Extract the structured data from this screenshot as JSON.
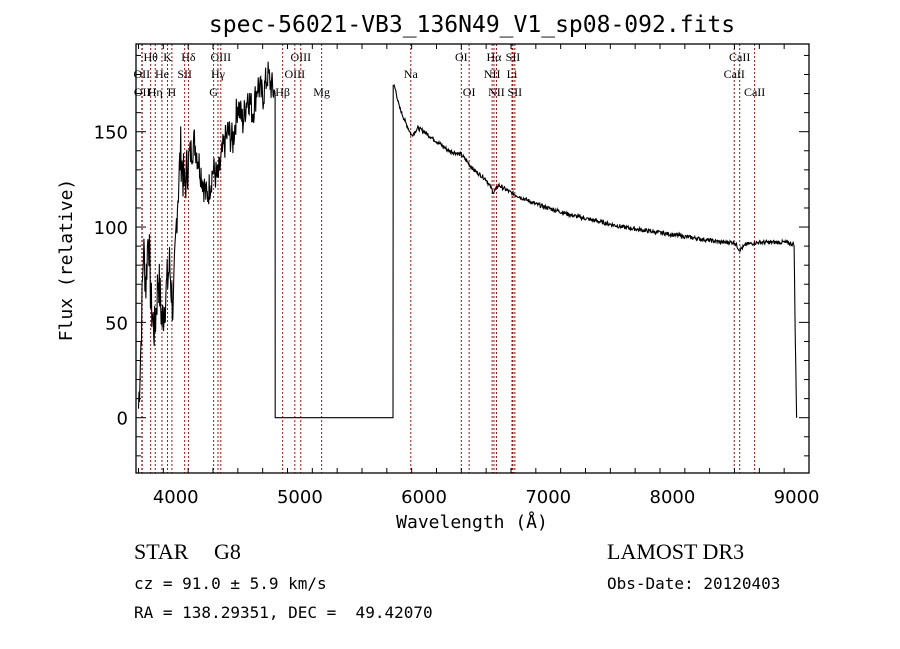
{
  "chart_data": {
    "type": "line",
    "title": "spec-56021-VB3_136N49_V1_sp08-092.fits",
    "xlabel": "Wavelength (Å)",
    "ylabel": "Flux (relative)",
    "xlim": [
      3680,
      9100
    ],
    "ylim": [
      -29,
      196
    ],
    "xticks": [
      4000,
      5000,
      6000,
      7000,
      8000,
      9000
    ],
    "xtick_labels": [
      "4000",
      "5000",
      "6000",
      "7000",
      "8000",
      "9000"
    ],
    "yticks": [
      0,
      50,
      100,
      150
    ],
    "ytick_labels": [
      "0",
      "50",
      "100",
      "150"
    ],
    "grid": false,
    "line_color": "#000000",
    "marker_line_color": "#a01010",
    "series": [
      {
        "name": "flux",
        "x": [
          3700,
          3720,
          3740,
          3760,
          3780,
          3800,
          3830,
          3860,
          3890,
          3920,
          3950,
          3980,
          4010,
          4040,
          4070,
          4100,
          4150,
          4200,
          4250,
          4300,
          4340,
          4380,
          4420,
          4460,
          4500,
          4540,
          4580,
          4620,
          4660,
          4700,
          4740,
          4780,
          4800,
          4801,
          5750,
          5751,
          5770,
          5800,
          5850,
          5900,
          5950,
          6000,
          6100,
          6200,
          6300,
          6400,
          6500,
          6560,
          6600,
          6700,
          6800,
          6900,
          7000,
          7200,
          7400,
          7600,
          7800,
          8000,
          8200,
          8400,
          8500,
          8540,
          8600,
          8700,
          8800,
          8900,
          8980,
          8990,
          9000
        ],
        "y": [
          5,
          40,
          90,
          70,
          100,
          60,
          45,
          75,
          50,
          65,
          80,
          55,
          110,
          140,
          120,
          135,
          145,
          130,
          115,
          130,
          125,
          140,
          150,
          145,
          165,
          155,
          170,
          160,
          175,
          168,
          180,
          172,
          170,
          0,
          0,
          175,
          172,
          163,
          155,
          148,
          152,
          150,
          145,
          140,
          138,
          130,
          125,
          118,
          122,
          118,
          115,
          112,
          110,
          106,
          103,
          100,
          98,
          96,
          94,
          92,
          92,
          88,
          91,
          92,
          92,
          92,
          91,
          40,
          0
        ]
      }
    ],
    "spectral_lines": [
      {
        "label": "Hθ",
        "wavelength": 3798,
        "row": 1
      },
      {
        "label": "K",
        "wavelength": 3934,
        "row": 1
      },
      {
        "label": "Hδ",
        "wavelength": 4102,
        "row": 1
      },
      {
        "label": "OIII",
        "wavelength": 4363,
        "row": 1
      },
      {
        "label": "OIII",
        "wavelength": 5007,
        "row": 1
      },
      {
        "label": "OI",
        "wavelength": 6300,
        "row": 1
      },
      {
        "label": "Hα",
        "wavelength": 6563,
        "row": 1
      },
      {
        "label": "SII",
        "wavelength": 6716,
        "row": 1
      },
      {
        "label": "CaII",
        "wavelength": 8542,
        "row": 1
      },
      {
        "label": "OII",
        "wavelength": 3727,
        "row": 2
      },
      {
        "label": "He",
        "wavelength": 3889,
        "row": 2
      },
      {
        "label": "SII",
        "wavelength": 4072,
        "row": 2
      },
      {
        "label": "Hγ",
        "wavelength": 4340,
        "row": 2
      },
      {
        "label": "OIII",
        "wavelength": 4959,
        "row": 2
      },
      {
        "label": "Na",
        "wavelength": 5893,
        "row": 2
      },
      {
        "label": "NII",
        "wavelength": 6548,
        "row": 2
      },
      {
        "label": "Li",
        "wavelength": 6708,
        "row": 2
      },
      {
        "label": "CaII",
        "wavelength": 8498,
        "row": 2
      },
      {
        "label": "OII",
        "wavelength": 3730,
        "row": 3
      },
      {
        "label": "Hη",
        "wavelength": 3835,
        "row": 3
      },
      {
        "label": "H",
        "wavelength": 3969,
        "row": 3
      },
      {
        "label": "G",
        "wavelength": 4305,
        "row": 3
      },
      {
        "label": "Hβ",
        "wavelength": 4861,
        "row": 3
      },
      {
        "label": "Mg",
        "wavelength": 5175,
        "row": 3
      },
      {
        "label": "OI",
        "wavelength": 6363,
        "row": 3
      },
      {
        "label": "NII",
        "wavelength": 6583,
        "row": 3
      },
      {
        "label": "SII",
        "wavelength": 6731,
        "row": 3
      },
      {
        "label": "CaII",
        "wavelength": 8662,
        "row": 3
      }
    ]
  },
  "info": {
    "object_type": "STAR",
    "subclass": "G8",
    "cz": "cz = 91.0 ± 5.9 km/s",
    "coords": "RA = 138.29351, DEC =  49.42070",
    "survey": "LAMOST DR3",
    "obs_date": "Obs-Date: 20120403"
  }
}
